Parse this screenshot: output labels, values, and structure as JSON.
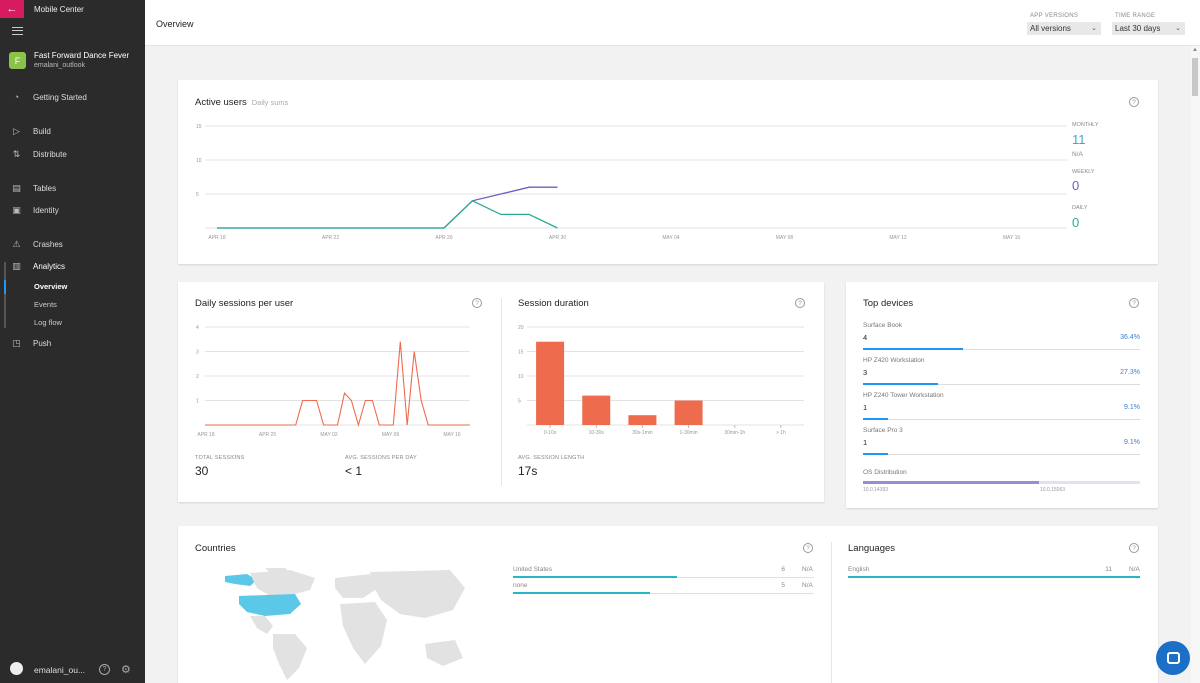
{
  "sidebar": {
    "app_name": "Mobile Center",
    "app": {
      "avatar_letter": "F",
      "title": "Fast Forward Dance Fever",
      "owner": "emalani_outlook"
    },
    "nav": [
      {
        "label": "Getting Started",
        "icon": "gauge-icon"
      },
      {
        "label": "Build",
        "icon": "play-icon"
      },
      {
        "label": "Distribute",
        "icon": "distribute-icon"
      },
      {
        "label": "Tables",
        "icon": "table-icon"
      },
      {
        "label": "Identity",
        "icon": "identity-icon"
      },
      {
        "label": "Crashes",
        "icon": "warning-icon"
      },
      {
        "label": "Analytics",
        "icon": "bar-chart-icon"
      },
      {
        "label": "Push",
        "icon": "push-icon"
      }
    ],
    "analytics_sub": [
      "Overview",
      "Events",
      "Log flow"
    ],
    "user": "emalani_ou..."
  },
  "header": {
    "title": "Overview",
    "app_versions_label": "APP VERSIONS",
    "app_versions_value": "All versions",
    "time_range_label": "TIME RANGE",
    "time_range_value": "Last 30 days"
  },
  "active_users": {
    "title": "Active users",
    "subtitle": "Daily sums",
    "y_ticks": [
      "15",
      "10",
      "5"
    ],
    "x_ticks": [
      "APR 18",
      "APR 22",
      "APR 26",
      "APR 30",
      "MAY 04",
      "MAY 08",
      "MAY 12",
      "MAY 16"
    ],
    "monthly_label": "MONTHLY",
    "monthly_value": "11",
    "monthly_sub": "N/A",
    "weekly_label": "WEEKLY",
    "weekly_value": "0",
    "daily_label": "DAILY",
    "daily_value": "0"
  },
  "daily_sessions": {
    "title": "Daily sessions per user",
    "y_ticks": [
      "4",
      "3",
      "2",
      "1"
    ],
    "x_ticks": [
      "APR 18",
      "APR 25",
      "MAY 02",
      "MAY 09",
      "MAY 16"
    ],
    "total_label": "TOTAL SESSIONS",
    "total_value": "30",
    "avg_label": "AVG. SESSIONS PER DAY",
    "avg_value": "< 1"
  },
  "session_duration": {
    "title": "Session duration",
    "y_ticks": [
      "20",
      "15",
      "10",
      "5"
    ],
    "avg_label": "AVG. SESSION LENGTH",
    "avg_value": "17s"
  },
  "top_devices": {
    "title": "Top devices",
    "devices": [
      {
        "name": "Surface Book",
        "count": "4",
        "pct": "36.4%"
      },
      {
        "name": "HP Z420 Workstation",
        "count": "3",
        "pct": "27.3%"
      },
      {
        "name": "HP Z240 Tower Workstation",
        "count": "1",
        "pct": "9.1%"
      },
      {
        "name": "Surface Pro 3",
        "count": "1",
        "pct": "9.1%"
      }
    ],
    "os_label": "OS Distribution",
    "os_left": "10.0.14393",
    "os_right": "10.0.15063"
  },
  "countries": {
    "title": "Countries",
    "rows": [
      {
        "name": "United States",
        "count": "6",
        "na": "N/A"
      },
      {
        "name": "none",
        "count": "5",
        "na": "N/A"
      }
    ]
  },
  "languages": {
    "title": "Languages",
    "rows": [
      {
        "name": "English",
        "count": "11",
        "na": "N/A"
      }
    ]
  },
  "colors": {
    "monthly": "#3fa7c9",
    "weekly": "#6b5fbf",
    "daily": "#2eaa98",
    "sessions": "#ee6b4d",
    "accent": "#2196f3",
    "brand": "#d81b60"
  },
  "chart_data": [
    {
      "type": "line",
      "title": "Active users",
      "subtitle": "Daily sums",
      "x": [
        "APR 18",
        "APR 19",
        "APR 20",
        "APR 21",
        "APR 22",
        "APR 23",
        "APR 24",
        "APR 25",
        "APR 26",
        "APR 27",
        "APR 28",
        "APR 29",
        "APR 30"
      ],
      "series": [
        {
          "name": "WEEKLY",
          "values": [
            0,
            0,
            0,
            0,
            0,
            0,
            0,
            0,
            0,
            4,
            5,
            6,
            6
          ]
        },
        {
          "name": "DAILY",
          "values": [
            0,
            0,
            0,
            0,
            0,
            0,
            0,
            0,
            0,
            4,
            2,
            2,
            0
          ]
        }
      ],
      "ylim": [
        0,
        15
      ],
      "grid": true
    },
    {
      "type": "line",
      "title": "Daily sessions per user",
      "x_ticks": [
        "APR 18",
        "APR 25",
        "MAY 02",
        "MAY 09",
        "MAY 16"
      ],
      "values": [
        0,
        0,
        0,
        0,
        0,
        0,
        0,
        0,
        0,
        0,
        0,
        0,
        0,
        0,
        1,
        1,
        1,
        0,
        0,
        0,
        1.3,
        1,
        0,
        1,
        1,
        0,
        0,
        0,
        3.4,
        0,
        3,
        1,
        0,
        0,
        0,
        0,
        0,
        0,
        0
      ],
      "ylim": [
        0,
        4
      ],
      "grid": true
    },
    {
      "type": "bar",
      "title": "Session duration",
      "categories": [
        "0-10s",
        "10-30s",
        "30s-1min",
        "1-30min",
        "30min-1h",
        "> 1h"
      ],
      "values": [
        17,
        6,
        2,
        5,
        0,
        0
      ],
      "ylim": [
        0,
        20
      ],
      "grid": true
    }
  ]
}
